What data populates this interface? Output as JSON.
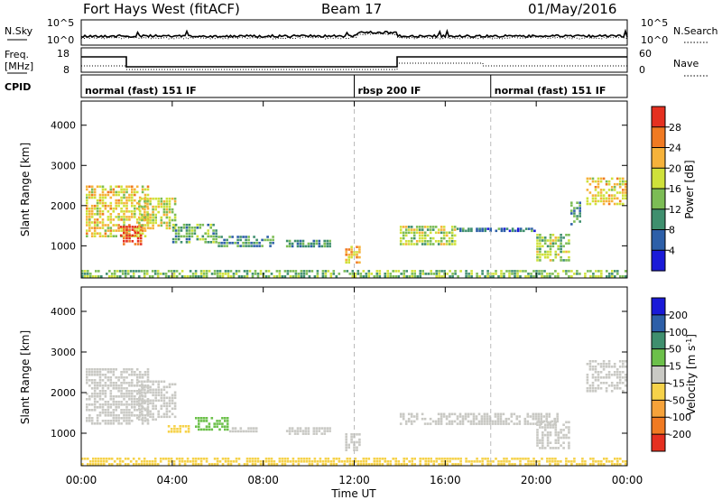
{
  "header": {
    "title": "Fort Hays West (fitACF)",
    "beam": "Beam 17",
    "date": "01/May/2016"
  },
  "panels": {
    "nsky": {
      "left_label": "N.Sky",
      "right_label": "N.Search",
      "left_ticks": [
        "10^5",
        "10^0"
      ],
      "right_ticks": [
        "10^5",
        "10^0"
      ]
    },
    "freq": {
      "left_label_line1": "Freq.",
      "left_label_line2": "[MHz]",
      "right_label": "Nave",
      "left_ticks": [
        "18",
        "8"
      ],
      "right_ticks": [
        "60",
        "0"
      ]
    },
    "cpid": {
      "label": "CPID",
      "segments": [
        {
          "label": "normal (fast) 151 IF",
          "start_hour": 0,
          "end_hour": 12
        },
        {
          "label": "rbsp 200 IF",
          "start_hour": 12,
          "end_hour": 18
        },
        {
          "label": "normal (fast) 151 IF",
          "start_hour": 18,
          "end_hour": 24
        }
      ]
    }
  },
  "chart_data": [
    {
      "type": "heatmap",
      "name": "Power",
      "ylabel": "Slant Range [km]",
      "ylim": [
        200,
        4600
      ],
      "yticks": [
        1000,
        2000,
        3000,
        4000
      ],
      "xlim_hours": [
        0,
        24
      ],
      "colorbar_label": "Power [dB]",
      "colorbar_ticks": [
        "4",
        "8",
        "12",
        "16",
        "20",
        "24",
        "28"
      ],
      "colorbar_colors": [
        "#1a1ad8",
        "#2d5fa8",
        "#3f8f6e",
        "#7cbc55",
        "#cfe13a",
        "#f6b23a",
        "#f07a22",
        "#e53020"
      ],
      "echo_regions": [
        {
          "t0": 0.2,
          "t1": 3.0,
          "r0": 1200,
          "r1": 2500,
          "value": 20
        },
        {
          "t0": 1.7,
          "t1": 2.7,
          "r0": 1000,
          "r1": 1500,
          "value": 30
        },
        {
          "t0": 2.5,
          "t1": 4.2,
          "r0": 1400,
          "r1": 2200,
          "value": 18
        },
        {
          "t0": 4.0,
          "t1": 6.0,
          "r0": 1050,
          "r1": 1550,
          "value": 12
        },
        {
          "t0": 6.0,
          "t1": 8.5,
          "r0": 950,
          "r1": 1250,
          "value": 10
        },
        {
          "t0": 9.0,
          "t1": 11.0,
          "r0": 950,
          "r1": 1150,
          "value": 10
        },
        {
          "t0": 11.6,
          "t1": 12.3,
          "r0": 550,
          "r1": 1000,
          "value": 22
        },
        {
          "t0": 14.0,
          "t1": 16.5,
          "r0": 1000,
          "r1": 1500,
          "value": 16
        },
        {
          "t0": 16.5,
          "t1": 20.0,
          "r0": 1350,
          "r1": 1450,
          "value": 8
        },
        {
          "t0": 20.0,
          "t1": 21.5,
          "r0": 600,
          "r1": 1300,
          "value": 16
        },
        {
          "t0": 21.5,
          "t1": 22.0,
          "r0": 1500,
          "r1": 2100,
          "value": 10
        },
        {
          "t0": 22.2,
          "t1": 24.0,
          "r0": 2000,
          "r1": 2700,
          "value": 20
        },
        {
          "t0": 0.0,
          "t1": 24.0,
          "r0": 200,
          "r1": 400,
          "value": 14
        }
      ]
    },
    {
      "type": "heatmap",
      "name": "Velocity",
      "ylabel": "Slant Range [km]",
      "ylim": [
        200,
        4600
      ],
      "yticks": [
        1000,
        2000,
        3000,
        4000
      ],
      "xlim_hours": [
        0,
        24
      ],
      "colorbar_label": "Velocity [m s^-1]",
      "colorbar_ticks": [
        "200",
        "100",
        "50",
        "15",
        "-15",
        "-50",
        "-100",
        "-200"
      ],
      "colorbar_colors": [
        "#1a1ad8",
        "#2d5fa8",
        "#3f8f6e",
        "#6cc04a",
        "#c9c9c4",
        "#f6d24a",
        "#f6a23a",
        "#f07a22",
        "#e53020"
      ],
      "echo_regions": [
        {
          "t0": 0.2,
          "t1": 3.0,
          "r0": 1200,
          "r1": 2600,
          "value": 0
        },
        {
          "t0": 2.5,
          "t1": 4.2,
          "r0": 1300,
          "r1": 2300,
          "value": 0
        },
        {
          "t0": 3.8,
          "t1": 4.8,
          "r0": 1000,
          "r1": 1200,
          "value": -30
        },
        {
          "t0": 5.0,
          "t1": 6.5,
          "r0": 1050,
          "r1": 1400,
          "value": 40
        },
        {
          "t0": 6.5,
          "t1": 8.0,
          "r0": 1000,
          "r1": 1150,
          "value": 0
        },
        {
          "t0": 9.0,
          "t1": 11.0,
          "r0": 950,
          "r1": 1150,
          "value": 0
        },
        {
          "t0": 11.6,
          "t1": 12.3,
          "r0": 550,
          "r1": 1000,
          "value": 0
        },
        {
          "t0": 14.0,
          "t1": 21.0,
          "r0": 1200,
          "r1": 1500,
          "value": 0
        },
        {
          "t0": 20.0,
          "t1": 21.5,
          "r0": 600,
          "r1": 1300,
          "value": 0
        },
        {
          "t0": 22.2,
          "t1": 24.0,
          "r0": 2000,
          "r1": 2800,
          "value": 0
        },
        {
          "t0": 0.0,
          "t1": 24.0,
          "r0": 200,
          "r1": 400,
          "value": -20
        }
      ]
    }
  ],
  "xaxis": {
    "label": "Time UT",
    "tick_hours": [
      0,
      4,
      8,
      12,
      16,
      20,
      24
    ],
    "tick_labels": [
      "00:00",
      "04:00",
      "08:00",
      "12:00",
      "16:00",
      "20:00",
      "00:00"
    ]
  }
}
